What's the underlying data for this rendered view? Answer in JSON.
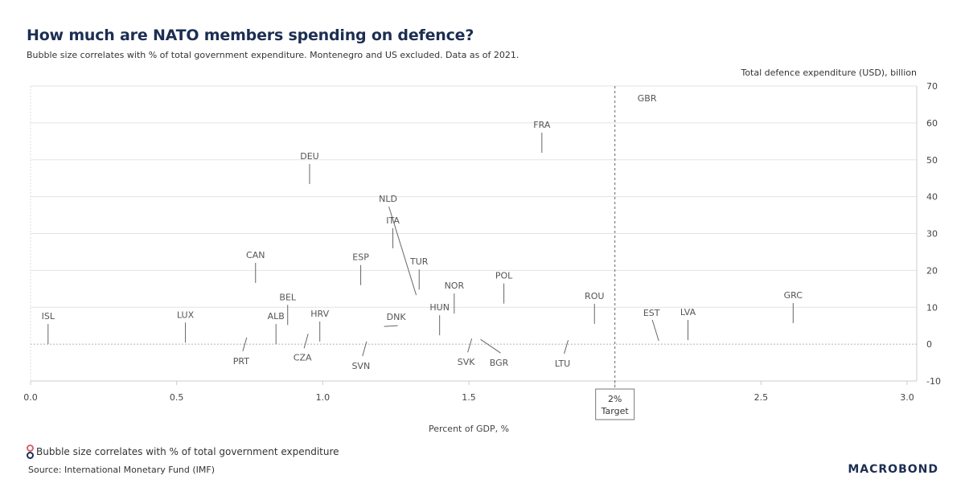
{
  "title": "How much are NATO members spending on defence?",
  "subtitle": "Bubble size correlates with % of total government expenditure. Montenegro and US excluded. Data as of 2021.",
  "legend_text": "Bubble size correlates with % of total government expenditure",
  "source": "Source: International Monetary Fund (IMF)",
  "logo": "MACROBOND",
  "colors": {
    "title": "#1c2e52",
    "legend_red": "#d9626e",
    "legend_navy": "#1c2e52",
    "grid": "#e3e3e3",
    "label": "#555555"
  },
  "chart_data": {
    "type": "scatter",
    "title": "How much are NATO members spending on defence?",
    "xlabel": "Percent of GDP, %",
    "ylabel": "Total defence expenditure (USD), billion",
    "xlim": [
      0,
      3.0
    ],
    "ylim": [
      -10,
      70
    ],
    "x_ticks": [
      0,
      0.5,
      1.0,
      1.5,
      2.0,
      2.5,
      3.0
    ],
    "x_tick_labels": [
      "0.0",
      "0.5",
      "1.0",
      "1.5",
      "",
      "2.5",
      "3.0"
    ],
    "y_ticks": [
      -10,
      0,
      10,
      20,
      30,
      40,
      50,
      60,
      70
    ],
    "y_tick_labels": [
      "-10",
      "0",
      "10",
      "20",
      "30",
      "40",
      "50",
      "60",
      "70"
    ],
    "grid": true,
    "annotation": {
      "x": 2.0,
      "label_line1": "2%",
      "label_line2": "Target"
    },
    "points": [
      {
        "label": "ISL",
        "x": 0.06,
        "y": 0.0
      },
      {
        "label": "LUX",
        "x": 0.53,
        "y": 0.4
      },
      {
        "label": "PRT",
        "x": 0.74,
        "y": 1.8
      },
      {
        "label": "ALB",
        "x": 0.84,
        "y": 0.0
      },
      {
        "label": "BEL",
        "x": 0.88,
        "y": 5.2
      },
      {
        "label": "CZA",
        "x": 0.95,
        "y": 2.8
      },
      {
        "label": "HRV",
        "x": 0.99,
        "y": 0.7
      },
      {
        "label": "CAN",
        "x": 0.77,
        "y": 16.6
      },
      {
        "label": "DEU",
        "x": 0.955,
        "y": 43.4
      },
      {
        "label": "ESP",
        "x": 1.13,
        "y": 16.0
      },
      {
        "label": "NLD",
        "x": 1.32,
        "y": 13.3
      },
      {
        "label": "ITA",
        "x": 1.24,
        "y": 26.0
      },
      {
        "label": "TUR",
        "x": 1.33,
        "y": 14.8
      },
      {
        "label": "DNK",
        "x": 1.21,
        "y": 4.8
      },
      {
        "label": "SVN",
        "x": 1.15,
        "y": 0.7
      },
      {
        "label": "HUN",
        "x": 1.4,
        "y": 2.4
      },
      {
        "label": "NOR",
        "x": 1.45,
        "y": 8.3
      },
      {
        "label": "SVK",
        "x": 1.51,
        "y": 1.5
      },
      {
        "label": "BGR",
        "x": 1.54,
        "y": 1.3
      },
      {
        "label": "POL",
        "x": 1.62,
        "y": 11.0
      },
      {
        "label": "FRA",
        "x": 1.75,
        "y": 51.9
      },
      {
        "label": "LTU",
        "x": 1.84,
        "y": 1.1
      },
      {
        "label": "ROU",
        "x": 1.93,
        "y": 5.5
      },
      {
        "label": "GBR",
        "x": 2.11,
        "y": 66.7
      },
      {
        "label": "EST",
        "x": 2.15,
        "y": 0.9
      },
      {
        "label": "LVA",
        "x": 2.25,
        "y": 1.1
      },
      {
        "label": "GRC",
        "x": 2.61,
        "y": 5.7
      }
    ]
  }
}
